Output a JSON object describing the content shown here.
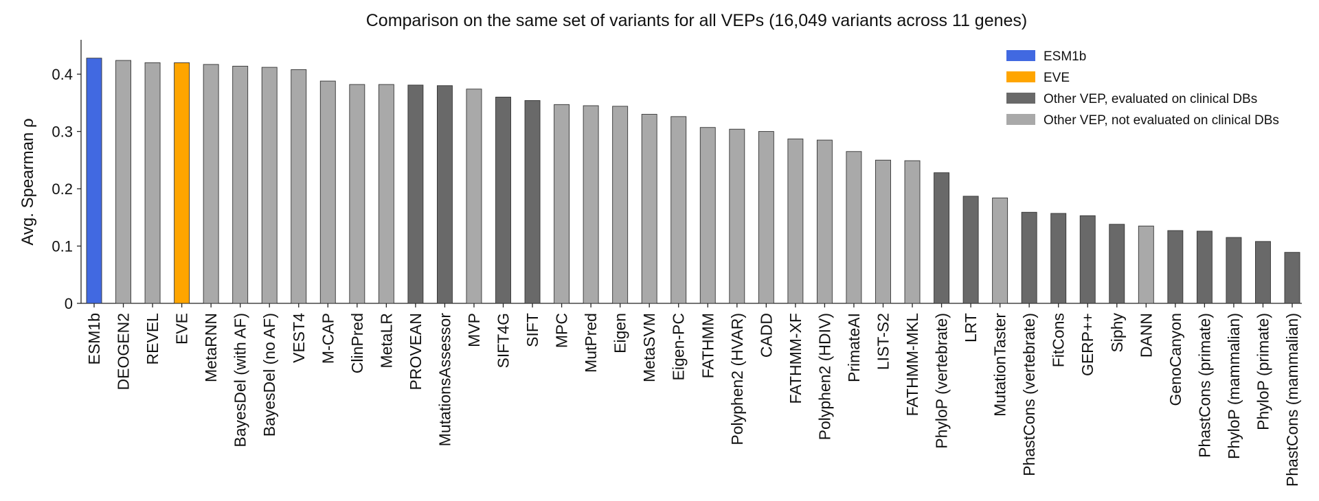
{
  "chart_data": {
    "type": "bar",
    "title": "Comparison on the same set of variants for all VEPs (16,049 variants across 11 genes)",
    "ylabel": "Avg. Spearman ρ",
    "xlabel": "",
    "ylim": [
      0,
      0.46
    ],
    "yticks": [
      {
        "value": 0,
        "label": "0"
      },
      {
        "value": 0.1,
        "label": "0.1"
      },
      {
        "value": 0.2,
        "label": "0.2"
      },
      {
        "value": 0.3,
        "label": "0.3"
      },
      {
        "value": 0.4,
        "label": "0.4"
      }
    ],
    "grid": false,
    "legend_position": "top-right",
    "legend": [
      {
        "label": "ESM1b",
        "color": "#4169E1"
      },
      {
        "label": "EVE",
        "color": "#FFA500"
      },
      {
        "label": "Other VEP, evaluated on clinical DBs",
        "color": "#696969"
      },
      {
        "label": "Other VEP, not evaluated on clinical DBs",
        "color": "#A9A9A9"
      }
    ],
    "bars": [
      {
        "category": "ESM1b",
        "value": 0.428,
        "color": "#4169E1"
      },
      {
        "category": "DEOGEN2",
        "value": 0.424,
        "color": "#A9A9A9"
      },
      {
        "category": "REVEL",
        "value": 0.42,
        "color": "#A9A9A9"
      },
      {
        "category": "EVE",
        "value": 0.42,
        "color": "#FFA500"
      },
      {
        "category": "MetaRNN",
        "value": 0.417,
        "color": "#A9A9A9"
      },
      {
        "category": "BayesDel (with AF)",
        "value": 0.414,
        "color": "#A9A9A9"
      },
      {
        "category": "BayesDel (no AF)",
        "value": 0.412,
        "color": "#A9A9A9"
      },
      {
        "category": "VEST4",
        "value": 0.408,
        "color": "#A9A9A9"
      },
      {
        "category": "M-CAP",
        "value": 0.388,
        "color": "#A9A9A9"
      },
      {
        "category": "ClinPred",
        "value": 0.382,
        "color": "#A9A9A9"
      },
      {
        "category": "MetaLR",
        "value": 0.382,
        "color": "#A9A9A9"
      },
      {
        "category": "PROVEAN",
        "value": 0.381,
        "color": "#696969"
      },
      {
        "category": "MutationsAssessor",
        "value": 0.38,
        "color": "#696969"
      },
      {
        "category": "MVP",
        "value": 0.374,
        "color": "#A9A9A9"
      },
      {
        "category": "SIFT4G",
        "value": 0.36,
        "color": "#696969"
      },
      {
        "category": "SIFT",
        "value": 0.354,
        "color": "#696969"
      },
      {
        "category": "MPC",
        "value": 0.347,
        "color": "#A9A9A9"
      },
      {
        "category": "MutPred",
        "value": 0.345,
        "color": "#A9A9A9"
      },
      {
        "category": "Eigen",
        "value": 0.344,
        "color": "#A9A9A9"
      },
      {
        "category": "MetaSVM",
        "value": 0.33,
        "color": "#A9A9A9"
      },
      {
        "category": "Eigen-PC",
        "value": 0.326,
        "color": "#A9A9A9"
      },
      {
        "category": "FATHMM",
        "value": 0.307,
        "color": "#A9A9A9"
      },
      {
        "category": "Polyphen2 (HVAR)",
        "value": 0.304,
        "color": "#A9A9A9"
      },
      {
        "category": "CADD",
        "value": 0.3,
        "color": "#A9A9A9"
      },
      {
        "category": "FATHMM-XF",
        "value": 0.287,
        "color": "#A9A9A9"
      },
      {
        "category": "Polyphen2 (HDIV)",
        "value": 0.285,
        "color": "#A9A9A9"
      },
      {
        "category": "PrimateAI",
        "value": 0.265,
        "color": "#A9A9A9"
      },
      {
        "category": "LIST-S2",
        "value": 0.25,
        "color": "#A9A9A9"
      },
      {
        "category": "FATHMM-MKL",
        "value": 0.249,
        "color": "#A9A9A9"
      },
      {
        "category": "PhyloP (vertebrate)",
        "value": 0.228,
        "color": "#696969"
      },
      {
        "category": "LRT",
        "value": 0.187,
        "color": "#696969"
      },
      {
        "category": "MutationTaster",
        "value": 0.184,
        "color": "#A9A9A9"
      },
      {
        "category": "PhastCons (vertebrate)",
        "value": 0.159,
        "color": "#696969"
      },
      {
        "category": "FitCons",
        "value": 0.157,
        "color": "#696969"
      },
      {
        "category": "GERP++",
        "value": 0.153,
        "color": "#696969"
      },
      {
        "category": "Siphy",
        "value": 0.138,
        "color": "#696969"
      },
      {
        "category": "DANN",
        "value": 0.135,
        "color": "#A9A9A9"
      },
      {
        "category": "GenoCanyon",
        "value": 0.127,
        "color": "#696969"
      },
      {
        "category": "PhastCons (primate)",
        "value": 0.126,
        "color": "#696969"
      },
      {
        "category": "PhyloP (mammalian)",
        "value": 0.115,
        "color": "#696969"
      },
      {
        "category": "PhyloP (primate)",
        "value": 0.108,
        "color": "#696969"
      },
      {
        "category": "PhastCons (mammalian)",
        "value": 0.089,
        "color": "#696969"
      }
    ]
  }
}
